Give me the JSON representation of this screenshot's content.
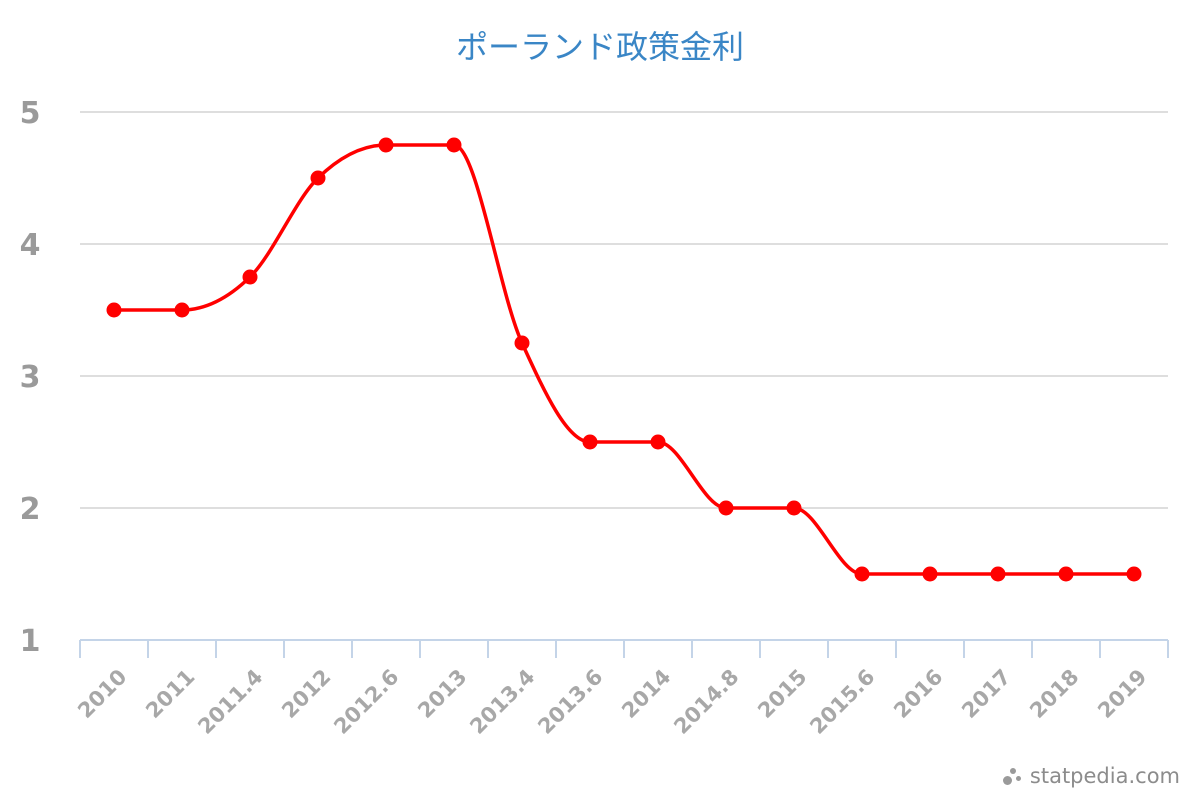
{
  "chart_data": {
    "type": "line",
    "title": "ポーランド政策金利",
    "categories": [
      "2010",
      "2011",
      "2011.4",
      "2012",
      "2012.6",
      "2013",
      "2013.4",
      "2013.6",
      "2014",
      "2014.8",
      "2015",
      "2015.6",
      "2016",
      "2017",
      "2018",
      "2019"
    ],
    "series": [
      {
        "values": [
          3.5,
          3.5,
          3.75,
          4.5,
          4.75,
          4.75,
          3.25,
          2.5,
          2.5,
          2.0,
          2.0,
          1.5,
          1.5,
          1.5,
          1.5,
          1.5
        ]
      }
    ],
    "ylim": [
      1,
      5
    ],
    "yticks": [
      "1",
      "2",
      "3",
      "4",
      "5"
    ],
    "grid": true,
    "legend": "none",
    "line_color": "#ff0000",
    "title_color": "#3a86c6",
    "grid_color": "#d3d3d3",
    "axis_color": "#c4d4e8"
  },
  "brand": {
    "text": "statpedia.com",
    "icon": "dots-logo-icon"
  }
}
